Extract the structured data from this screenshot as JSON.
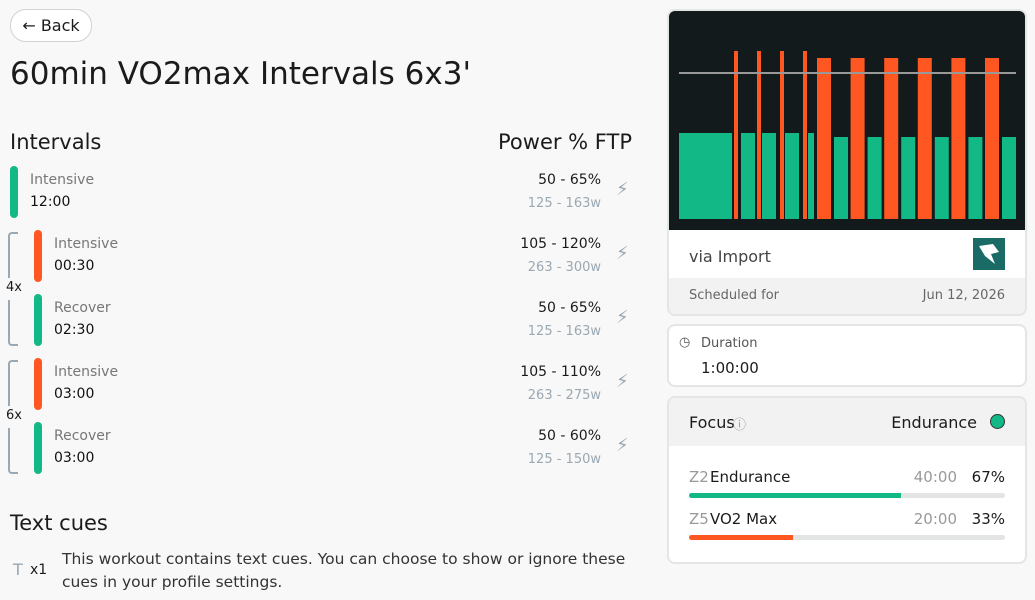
{
  "back": "Back",
  "title": "60min VO2max Intervals 6x3'",
  "intervals": {
    "heading": "Intervals",
    "power_heading": "Power % FTP",
    "rows": [
      {
        "group": null,
        "label": "Intensive",
        "duration": "12:00",
        "ftp": "50 - 65%",
        "watts": "125 - 163w",
        "zone": "green"
      },
      {
        "group": 0,
        "label": "Intensive",
        "duration": "00:30",
        "ftp": "105 - 120%",
        "watts": "263 - 300w",
        "zone": "orange"
      },
      {
        "group": 0,
        "label": "Recover",
        "duration": "02:30",
        "ftp": "50 - 65%",
        "watts": "125 - 163w",
        "zone": "green"
      },
      {
        "group": 1,
        "label": "Intensive",
        "duration": "03:00",
        "ftp": "105 - 110%",
        "watts": "263 - 275w",
        "zone": "orange"
      },
      {
        "group": 1,
        "label": "Recover",
        "duration": "03:00",
        "ftp": "50 - 60%",
        "watts": "125 - 150w",
        "zone": "green"
      }
    ],
    "groups": [
      "4x",
      "6x"
    ]
  },
  "text_cues": {
    "heading": "Text cues",
    "count": "x1",
    "body": "This workout contains text cues. You can choose to show or ignore these cues in your profile settings."
  },
  "card": {
    "source": "via Import",
    "scheduled_label": "Scheduled for",
    "scheduled_date": "Jun 12, 2026"
  },
  "duration": {
    "label": "Duration",
    "value": "1:00:00"
  },
  "focus": {
    "label": "Focus",
    "type": "Endurance",
    "zones": [
      {
        "code": "Z2",
        "name": "Endurance",
        "time": "40:00",
        "share": {
          "value": 67,
          "label": "67%"
        },
        "color": "#12b886"
      },
      {
        "code": "Z5",
        "name": "VO2 Max",
        "time": "20:00",
        "share": {
          "value": 33,
          "label": "33%"
        },
        "color": "#ff5722"
      }
    ]
  }
}
